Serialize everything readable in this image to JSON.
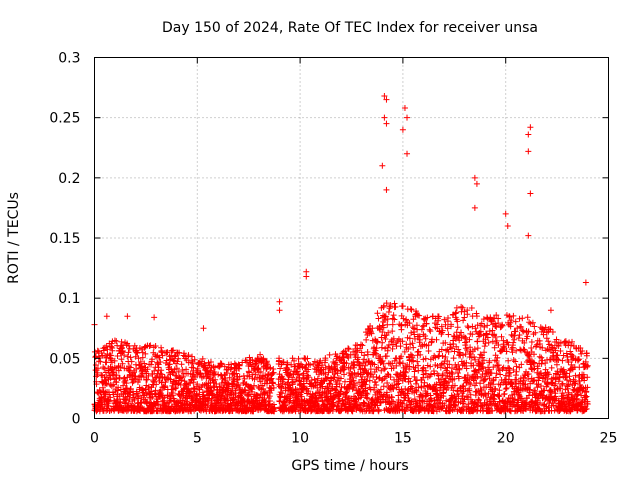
{
  "chart_data": {
    "type": "scatter",
    "title": "Day 150 of 2024, Rate Of TEC Index for receiver unsa",
    "xlabel": "GPS time / hours",
    "ylabel": "ROTI / TECUs",
    "xlim": [
      0,
      25
    ],
    "ylim": [
      0,
      0.3
    ],
    "x_ticks": [
      0,
      5,
      10,
      15,
      20,
      25
    ],
    "x_tick_labels": [
      "0",
      "5",
      "10",
      "15",
      "20",
      "25"
    ],
    "y_ticks": [
      0,
      0.05,
      0.1,
      0.15,
      0.2,
      0.25,
      0.3
    ],
    "y_tick_labels": [
      "0",
      "0.05",
      "0.1",
      "0.15",
      "0.2",
      "0.25",
      "0.3"
    ],
    "grid": true,
    "marker": "+",
    "series_color": "#ff0000",
    "series": [
      {
        "name": "ROTI",
        "approx_envelope": {
          "x": [
            0,
            1,
            2,
            3,
            4,
            5,
            6,
            7,
            8,
            8.5,
            9,
            10,
            11,
            12,
            13,
            14,
            15,
            16,
            17,
            18,
            19,
            20,
            21,
            22,
            23,
            24
          ],
          "typical_max": [
            0.05,
            0.06,
            0.055,
            0.055,
            0.05,
            0.045,
            0.04,
            0.04,
            0.05,
            0.04,
            0.045,
            0.045,
            0.045,
            0.05,
            0.06,
            0.09,
            0.09,
            0.08,
            0.08,
            0.09,
            0.08,
            0.08,
            0.08,
            0.07,
            0.06,
            0.05
          ]
        },
        "notable_points": [
          {
            "x": 0.0,
            "y": 0.078
          },
          {
            "x": 0.6,
            "y": 0.085
          },
          {
            "x": 1.6,
            "y": 0.085
          },
          {
            "x": 2.9,
            "y": 0.084
          },
          {
            "x": 5.3,
            "y": 0.075
          },
          {
            "x": 9.0,
            "y": 0.097
          },
          {
            "x": 9.0,
            "y": 0.09
          },
          {
            "x": 10.3,
            "y": 0.122
          },
          {
            "x": 10.3,
            "y": 0.118
          },
          {
            "x": 14.1,
            "y": 0.268
          },
          {
            "x": 14.2,
            "y": 0.265
          },
          {
            "x": 14.1,
            "y": 0.25
          },
          {
            "x": 14.2,
            "y": 0.245
          },
          {
            "x": 14.0,
            "y": 0.21
          },
          {
            "x": 14.2,
            "y": 0.19
          },
          {
            "x": 15.1,
            "y": 0.258
          },
          {
            "x": 15.2,
            "y": 0.25
          },
          {
            "x": 15.0,
            "y": 0.24
          },
          {
            "x": 15.2,
            "y": 0.22
          },
          {
            "x": 18.5,
            "y": 0.2
          },
          {
            "x": 18.6,
            "y": 0.195
          },
          {
            "x": 18.5,
            "y": 0.175
          },
          {
            "x": 20.0,
            "y": 0.17
          },
          {
            "x": 20.1,
            "y": 0.16
          },
          {
            "x": 21.2,
            "y": 0.242
          },
          {
            "x": 21.1,
            "y": 0.236
          },
          {
            "x": 21.1,
            "y": 0.222
          },
          {
            "x": 21.2,
            "y": 0.187
          },
          {
            "x": 21.1,
            "y": 0.152
          },
          {
            "x": 23.9,
            "y": 0.113
          },
          {
            "x": 22.2,
            "y": 0.09
          }
        ]
      }
    ]
  }
}
